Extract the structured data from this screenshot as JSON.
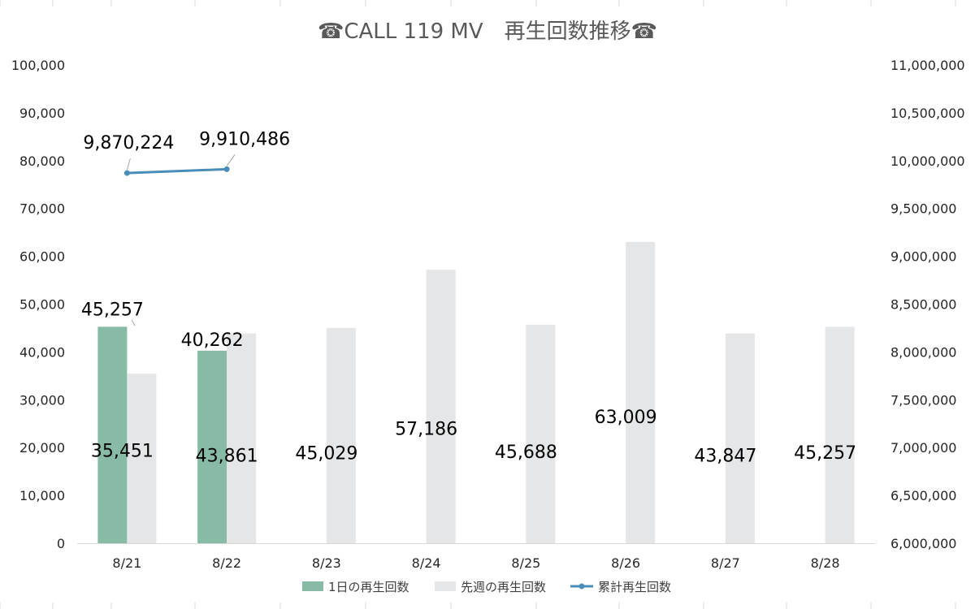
{
  "chart_data": {
    "type": "bar",
    "title": "☎CALL 119 MV　再生回数推移☎",
    "categories": [
      "8/21",
      "8/22",
      "8/23",
      "8/24",
      "8/25",
      "8/26",
      "8/27",
      "8/28"
    ],
    "series": [
      {
        "name": "1日の再生回数",
        "type": "bar",
        "axis": "left",
        "color": "#88bba6",
        "values": [
          45257,
          40262,
          null,
          null,
          null,
          null,
          null,
          null
        ]
      },
      {
        "name": "先週の再生回数",
        "type": "bar",
        "axis": "left",
        "color": "#e4e6e8",
        "values": [
          35451,
          43861,
          45029,
          57186,
          45688,
          63009,
          43847,
          45257
        ]
      },
      {
        "name": "累計再生回数",
        "type": "line",
        "axis": "right",
        "color": "#4a8db8",
        "values": [
          9870224,
          9910486,
          null,
          null,
          null,
          null,
          null,
          null
        ]
      }
    ],
    "data_labels": {
      "daily": [
        "45,257",
        "40,262"
      ],
      "last_week": [
        "35,451",
        "43,861",
        "45,029",
        "57,186",
        "45,688",
        "63,009",
        "43,847",
        "45,257"
      ],
      "cumulative": [
        "9,870,224",
        "9,910,486"
      ]
    },
    "left_axis": {
      "ylim": [
        0,
        100000
      ],
      "ticks": [
        0,
        10000,
        20000,
        30000,
        40000,
        50000,
        60000,
        70000,
        80000,
        90000,
        100000
      ],
      "tick_labels": [
        "0",
        "10,000",
        "20,000",
        "30,000",
        "40,000",
        "50,000",
        "60,000",
        "70,000",
        "80,000",
        "90,000",
        "100,000"
      ]
    },
    "right_axis": {
      "ylim": [
        6000000,
        11000000
      ],
      "ticks": [
        6000000,
        6500000,
        7000000,
        7500000,
        8000000,
        8500000,
        9000000,
        9500000,
        10000000,
        10500000,
        11000000
      ],
      "tick_labels": [
        "6,000,000",
        "6,500,000",
        "7,000,000",
        "7,500,000",
        "8,000,000",
        "8,500,000",
        "9,000,000",
        "9,500,000",
        "10,000,000",
        "10,500,000",
        "11,000,000"
      ]
    },
    "grid": false,
    "legend": "bottom"
  }
}
